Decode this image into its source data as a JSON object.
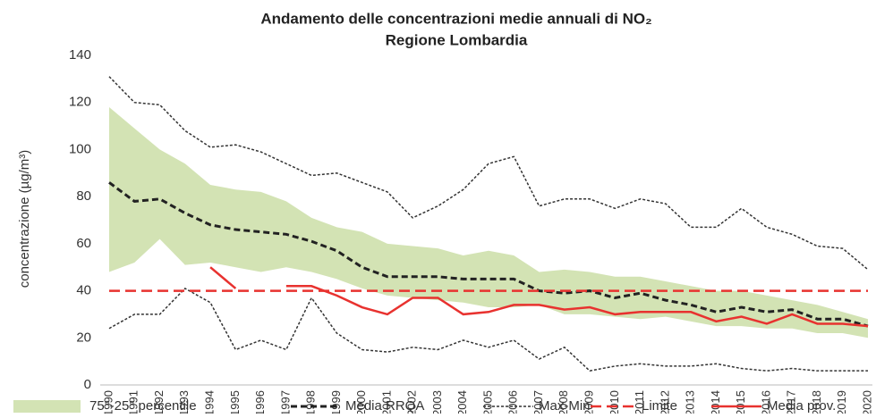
{
  "chart_data": {
    "type": "line",
    "title": "Andamento delle concentrazioni medie annuali di NO₂",
    "subtitle": "Regione Lombardia",
    "ylabel": "concentrazione (µg/m³)",
    "categories": [
      "1990",
      "1991",
      "1992",
      "1993",
      "1994",
      "1995",
      "1996",
      "1997",
      "1998",
      "1999",
      "2000",
      "2001",
      "2002",
      "2003",
      "2004",
      "2005",
      "2006",
      "2007",
      "2008",
      "2009",
      "2010",
      "2011",
      "2012",
      "2013",
      "2014",
      "2015",
      "2016",
      "2017",
      "2018",
      "2019",
      "2020"
    ],
    "ylim": [
      0,
      140
    ],
    "yticks": [
      0,
      20,
      40,
      60,
      80,
      100,
      120,
      140
    ],
    "grid": false,
    "legend": "bottom",
    "series": [
      {
        "name": "75°-25° percentile",
        "color": "#d3e3b4",
        "style": "band",
        "values": [
          118,
          109,
          100,
          94,
          85,
          83,
          82,
          78,
          71,
          67,
          65,
          60,
          59,
          58,
          55,
          57,
          55,
          48,
          49,
          48,
          46,
          46,
          44,
          42,
          40,
          40,
          38,
          36,
          34,
          31,
          28
        ],
        "low": [
          48,
          52,
          62,
          51,
          52,
          50,
          48,
          50,
          48,
          45,
          41,
          38,
          37,
          36,
          35,
          33,
          33,
          34,
          30,
          30,
          29,
          28,
          29,
          27,
          25,
          25,
          24,
          24,
          22,
          22,
          20
        ]
      },
      {
        "name": "Media RRQA",
        "color": "#222222",
        "style": "dashed",
        "values": [
          86,
          78,
          79,
          73,
          68,
          66,
          65,
          64,
          61,
          57,
          50,
          46,
          46,
          46,
          45,
          45,
          45,
          40,
          39,
          40,
          37,
          39,
          36,
          34,
          31,
          33,
          31,
          32,
          28,
          28,
          25
        ]
      },
      {
        "name": "Max-Min",
        "color": "#333333",
        "style": "dotted",
        "values": [
          131,
          120,
          119,
          108,
          101,
          102,
          99,
          94,
          89,
          90,
          86,
          82,
          71,
          76,
          83,
          94,
          97,
          76,
          79,
          79,
          75,
          79,
          77,
          67,
          67,
          75,
          67,
          64,
          59,
          58,
          49
        ],
        "low": [
          24,
          30,
          30,
          41,
          35,
          15,
          19,
          15,
          37,
          22,
          15,
          14,
          16,
          15,
          19,
          16,
          19,
          11,
          16,
          6,
          8,
          9,
          8,
          8,
          9,
          7,
          6,
          7,
          6,
          6,
          6
        ]
      },
      {
        "name": "Limite",
        "color": "#e8322f",
        "style": "longdash",
        "values": [
          40,
          40,
          40,
          40,
          40,
          40,
          40,
          40,
          40,
          40,
          40,
          40,
          40,
          40,
          40,
          40,
          40,
          40,
          40,
          40,
          40,
          40,
          40,
          40,
          40,
          40,
          40,
          40,
          40,
          40,
          40
        ]
      },
      {
        "name": "Media prov.",
        "color": "#e8322f",
        "style": "solid",
        "values": [
          null,
          null,
          null,
          null,
          50,
          41,
          null,
          42,
          42,
          38,
          33,
          30,
          37,
          37,
          30,
          31,
          34,
          34,
          32,
          33,
          30,
          31,
          31,
          31,
          27,
          29,
          26,
          30,
          26,
          26,
          25
        ]
      }
    ]
  }
}
